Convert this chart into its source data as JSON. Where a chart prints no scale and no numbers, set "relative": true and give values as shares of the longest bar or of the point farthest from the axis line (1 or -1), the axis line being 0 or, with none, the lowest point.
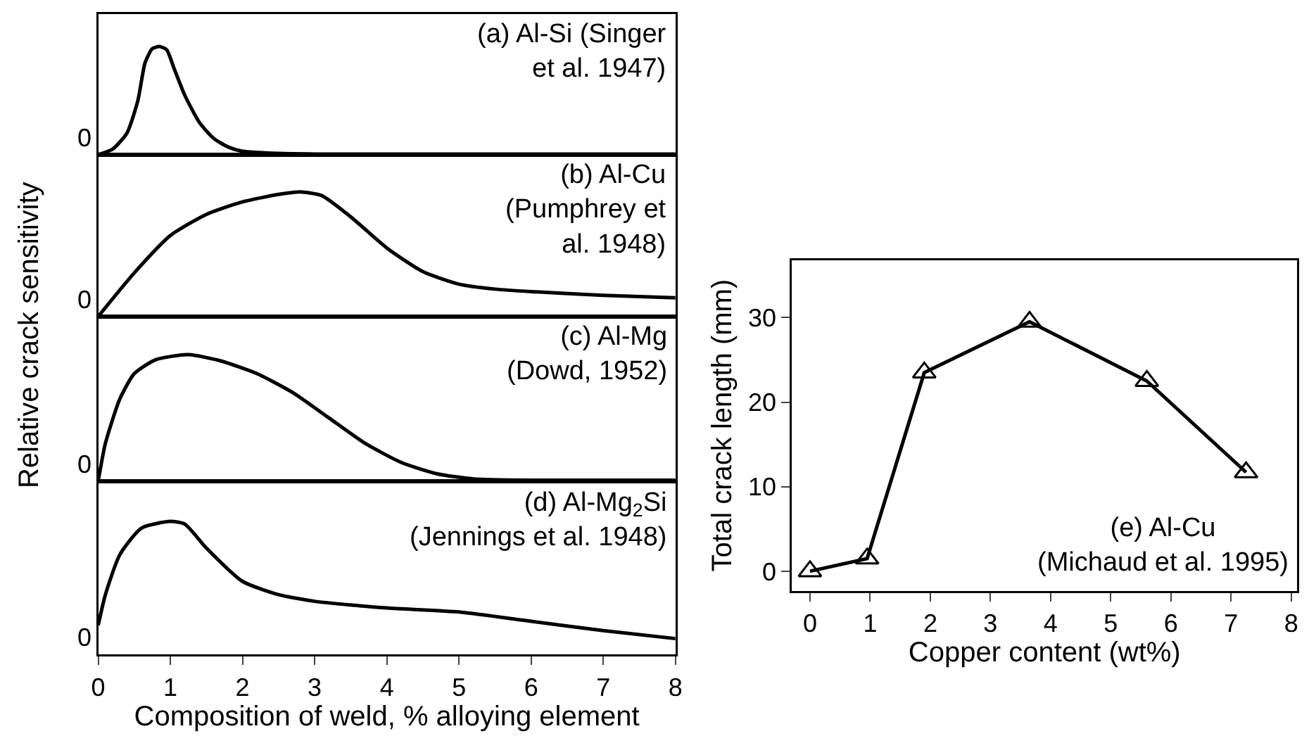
{
  "chart_data": [
    {
      "type": "line",
      "relative": true,
      "ylabel": "Relative crack sensitivity",
      "annotations": [
        "(a) Al-Si (Singer\net al. 1947)",
        "0"
      ],
      "xlim": [
        0,
        8
      ],
      "tick_labels": false,
      "color": "#000000",
      "x": [
        0,
        0.2,
        0.4,
        0.55,
        0.65,
        0.75,
        0.85,
        0.95,
        1.05,
        1.2,
        1.4,
        1.6,
        1.8,
        2.0,
        2.5,
        3,
        8
      ],
      "values": [
        0,
        0.05,
        0.2,
        0.5,
        0.85,
        0.98,
        1,
        0.97,
        0.8,
        0.55,
        0.3,
        0.15,
        0.07,
        0.03,
        0.01,
        0.005,
        0.005
      ]
    },
    {
      "type": "line",
      "relative": true,
      "annotations": [
        "(b) Al-Cu\n(Pumphrey et\nal. 1948)",
        "0"
      ],
      "xlim": [
        0,
        8
      ],
      "tick_labels": false,
      "color": "#000000",
      "x": [
        0,
        0.5,
        1,
        1.5,
        2,
        2.5,
        2.8,
        3.1,
        3.5,
        4,
        4.5,
        5,
        5.5,
        6,
        7,
        8
      ],
      "values": [
        0,
        0.35,
        0.65,
        0.82,
        0.92,
        0.98,
        1,
        0.97,
        0.8,
        0.55,
        0.36,
        0.26,
        0.22,
        0.2,
        0.17,
        0.15
      ]
    },
    {
      "type": "line",
      "relative": true,
      "annotations": [
        "(c) Al-Mg\n(Dowd, 1952)",
        "0"
      ],
      "xlim": [
        0,
        8
      ],
      "tick_labels": false,
      "color": "#000000",
      "x": [
        0,
        0.1,
        0.3,
        0.5,
        0.8,
        1.25,
        1.7,
        2.2,
        2.7,
        3.2,
        3.7,
        4.2,
        4.7,
        5.2,
        6,
        8
      ],
      "values": [
        0,
        0.3,
        0.65,
        0.85,
        0.96,
        1,
        0.95,
        0.85,
        0.7,
        0.5,
        0.3,
        0.15,
        0.06,
        0.02,
        0.01,
        0.01
      ]
    },
    {
      "type": "line",
      "relative": true,
      "xlabel": "Composition of weld, % alloying element",
      "annotations": [
        "(d) Al-Mg$_{2}$Si\n(Jennings et al. 1948)",
        "0"
      ],
      "xlim": [
        0,
        8
      ],
      "xticks": [
        0,
        1,
        2,
        3,
        4,
        5,
        6,
        7,
        8
      ],
      "tick_labels": "x",
      "color": "#000000",
      "x": [
        0,
        0.1,
        0.3,
        0.6,
        1,
        1.2,
        1.5,
        2,
        2.5,
        3,
        4,
        5,
        6,
        7,
        8
      ],
      "values": [
        0.22,
        0.45,
        0.75,
        0.95,
        1,
        0.98,
        0.8,
        0.55,
        0.45,
        0.4,
        0.35,
        0.32,
        0.25,
        0.18,
        0.12
      ]
    },
    {
      "type": "line",
      "xlabel": "Copper content (wt%)",
      "ylabel": "Total crack length (mm)",
      "annotations": [
        "(e) Al-Cu\n(Michaud et al. 1995)"
      ],
      "marker": "triangle",
      "color": "#000000",
      "x": [
        0,
        0.95,
        1.9,
        3.65,
        5.6,
        7.25
      ],
      "values": [
        0,
        1.5,
        23.5,
        29.5,
        22.5,
        11.7
      ],
      "xlim": [
        -0.3,
        8.1
      ],
      "xticks": [
        0,
        1,
        2,
        3,
        4,
        5,
        6,
        7,
        8
      ],
      "ylim": [
        -2.3,
        36.8
      ],
      "yticks": [
        0,
        10,
        20,
        30
      ]
    }
  ]
}
